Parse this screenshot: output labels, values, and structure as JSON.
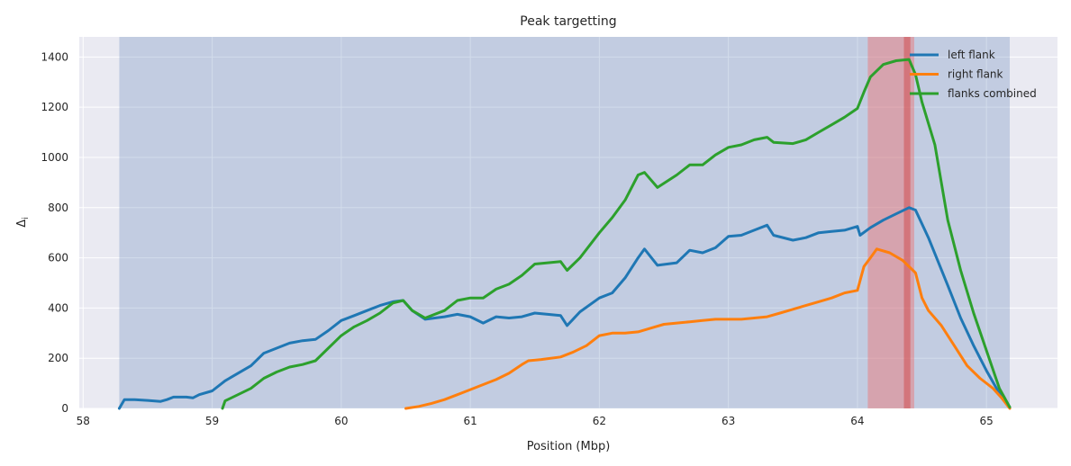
{
  "chart_data": {
    "type": "line",
    "title": "Peak targetting",
    "xlabel": "Position (Mbp)",
    "ylabel": "Δ",
    "ylabel_sub": "i",
    "xlim": [
      57.97,
      65.55
    ],
    "ylim": [
      0,
      1480
    ],
    "xticks": [
      58,
      59,
      60,
      61,
      62,
      63,
      64,
      65
    ],
    "yticks": [
      0,
      200,
      400,
      600,
      800,
      1000,
      1200,
      1400
    ],
    "grid": true,
    "legend_position": "top-right",
    "spans": [
      {
        "x0": 58.28,
        "x1": 65.18,
        "color": "#4c72b0",
        "alpha": 0.25
      },
      {
        "x0": 64.08,
        "x1": 64.44,
        "color": "#f07070",
        "alpha": 0.45
      },
      {
        "x0": 64.36,
        "x1": 64.41,
        "color": "#d04848",
        "alpha": 0.5
      }
    ],
    "series": [
      {
        "name": "left flank",
        "color": "#1f77b4",
        "points": [
          [
            58.28,
            0
          ],
          [
            58.32,
            35
          ],
          [
            58.4,
            35
          ],
          [
            58.5,
            32
          ],
          [
            58.6,
            28
          ],
          [
            58.65,
            35
          ],
          [
            58.7,
            45
          ],
          [
            58.8,
            45
          ],
          [
            58.85,
            42
          ],
          [
            58.9,
            55
          ],
          [
            59.0,
            70
          ],
          [
            59.1,
            110
          ],
          [
            59.2,
            140
          ],
          [
            59.3,
            170
          ],
          [
            59.4,
            220
          ],
          [
            59.5,
            240
          ],
          [
            59.6,
            260
          ],
          [
            59.7,
            270
          ],
          [
            59.8,
            275
          ],
          [
            59.9,
            310
          ],
          [
            60.0,
            350
          ],
          [
            60.1,
            370
          ],
          [
            60.2,
            390
          ],
          [
            60.3,
            410
          ],
          [
            60.4,
            425
          ],
          [
            60.48,
            430
          ],
          [
            60.55,
            390
          ],
          [
            60.65,
            355
          ],
          [
            60.8,
            365
          ],
          [
            60.9,
            375
          ],
          [
            61.0,
            365
          ],
          [
            61.1,
            340
          ],
          [
            61.2,
            365
          ],
          [
            61.3,
            360
          ],
          [
            61.4,
            365
          ],
          [
            61.5,
            380
          ],
          [
            61.6,
            375
          ],
          [
            61.7,
            370
          ],
          [
            61.75,
            330
          ],
          [
            61.85,
            385
          ],
          [
            62.0,
            440
          ],
          [
            62.1,
            460
          ],
          [
            62.2,
            520
          ],
          [
            62.3,
            600
          ],
          [
            62.35,
            635
          ],
          [
            62.45,
            570
          ],
          [
            62.6,
            580
          ],
          [
            62.7,
            630
          ],
          [
            62.8,
            620
          ],
          [
            62.9,
            640
          ],
          [
            63.0,
            685
          ],
          [
            63.1,
            690
          ],
          [
            63.2,
            710
          ],
          [
            63.3,
            730
          ],
          [
            63.35,
            690
          ],
          [
            63.5,
            670
          ],
          [
            63.6,
            680
          ],
          [
            63.7,
            700
          ],
          [
            63.8,
            705
          ],
          [
            63.9,
            710
          ],
          [
            64.0,
            725
          ],
          [
            64.02,
            690
          ],
          [
            64.1,
            720
          ],
          [
            64.2,
            750
          ],
          [
            64.3,
            775
          ],
          [
            64.4,
            800
          ],
          [
            64.45,
            790
          ],
          [
            64.55,
            680
          ],
          [
            64.7,
            490
          ],
          [
            64.8,
            360
          ],
          [
            64.9,
            250
          ],
          [
            65.0,
            150
          ],
          [
            65.1,
            60
          ],
          [
            65.18,
            5
          ]
        ]
      },
      {
        "name": "right flank",
        "color": "#ff7f0e",
        "points": [
          [
            60.5,
            0
          ],
          [
            60.6,
            8
          ],
          [
            60.7,
            20
          ],
          [
            60.8,
            35
          ],
          [
            60.9,
            55
          ],
          [
            61.0,
            75
          ],
          [
            61.1,
            95
          ],
          [
            61.2,
            115
          ],
          [
            61.3,
            140
          ],
          [
            61.4,
            175
          ],
          [
            61.45,
            190
          ],
          [
            61.55,
            195
          ],
          [
            61.7,
            205
          ],
          [
            61.8,
            225
          ],
          [
            61.9,
            250
          ],
          [
            62.0,
            290
          ],
          [
            62.1,
            300
          ],
          [
            62.2,
            300
          ],
          [
            62.3,
            305
          ],
          [
            62.4,
            320
          ],
          [
            62.5,
            335
          ],
          [
            62.6,
            340
          ],
          [
            62.7,
            345
          ],
          [
            62.8,
            350
          ],
          [
            62.9,
            355
          ],
          [
            63.0,
            355
          ],
          [
            63.1,
            355
          ],
          [
            63.2,
            360
          ],
          [
            63.3,
            365
          ],
          [
            63.4,
            380
          ],
          [
            63.5,
            395
          ],
          [
            63.6,
            410
          ],
          [
            63.7,
            425
          ],
          [
            63.8,
            440
          ],
          [
            63.9,
            460
          ],
          [
            64.0,
            470
          ],
          [
            64.05,
            565
          ],
          [
            64.1,
            600
          ],
          [
            64.15,
            635
          ],
          [
            64.25,
            620
          ],
          [
            64.35,
            590
          ],
          [
            64.45,
            540
          ],
          [
            64.5,
            440
          ],
          [
            64.55,
            390
          ],
          [
            64.65,
            330
          ],
          [
            64.75,
            250
          ],
          [
            64.85,
            170
          ],
          [
            64.95,
            120
          ],
          [
            65.05,
            80
          ],
          [
            65.12,
            40
          ],
          [
            65.18,
            0
          ]
        ]
      },
      {
        "name": "flanks combined",
        "color": "#2ca02c",
        "points": [
          [
            59.08,
            0
          ],
          [
            59.1,
            30
          ],
          [
            59.2,
            55
          ],
          [
            59.3,
            80
          ],
          [
            59.4,
            120
          ],
          [
            59.5,
            145
          ],
          [
            59.6,
            165
          ],
          [
            59.7,
            175
          ],
          [
            59.8,
            190
          ],
          [
            59.9,
            240
          ],
          [
            60.0,
            290
          ],
          [
            60.1,
            325
          ],
          [
            60.2,
            350
          ],
          [
            60.3,
            380
          ],
          [
            60.4,
            420
          ],
          [
            60.48,
            430
          ],
          [
            60.55,
            390
          ],
          [
            60.65,
            360
          ],
          [
            60.8,
            390
          ],
          [
            60.9,
            430
          ],
          [
            61.0,
            440
          ],
          [
            61.1,
            440
          ],
          [
            61.2,
            475
          ],
          [
            61.3,
            495
          ],
          [
            61.4,
            530
          ],
          [
            61.5,
            575
          ],
          [
            61.6,
            580
          ],
          [
            61.7,
            585
          ],
          [
            61.75,
            550
          ],
          [
            61.85,
            600
          ],
          [
            62.0,
            700
          ],
          [
            62.1,
            760
          ],
          [
            62.2,
            830
          ],
          [
            62.3,
            930
          ],
          [
            62.35,
            940
          ],
          [
            62.45,
            880
          ],
          [
            62.6,
            930
          ],
          [
            62.7,
            970
          ],
          [
            62.8,
            970
          ],
          [
            62.9,
            1010
          ],
          [
            63.0,
            1040
          ],
          [
            63.1,
            1050
          ],
          [
            63.2,
            1070
          ],
          [
            63.3,
            1080
          ],
          [
            63.35,
            1060
          ],
          [
            63.5,
            1055
          ],
          [
            63.6,
            1070
          ],
          [
            63.7,
            1100
          ],
          [
            63.8,
            1130
          ],
          [
            63.9,
            1160
          ],
          [
            64.0,
            1195
          ],
          [
            64.05,
            1260
          ],
          [
            64.1,
            1320
          ],
          [
            64.2,
            1370
          ],
          [
            64.3,
            1385
          ],
          [
            64.4,
            1390
          ],
          [
            64.45,
            1330
          ],
          [
            64.5,
            1220
          ],
          [
            64.6,
            1050
          ],
          [
            64.7,
            750
          ],
          [
            64.8,
            550
          ],
          [
            64.9,
            380
          ],
          [
            65.0,
            230
          ],
          [
            65.1,
            80
          ],
          [
            65.18,
            5
          ]
        ]
      }
    ]
  }
}
